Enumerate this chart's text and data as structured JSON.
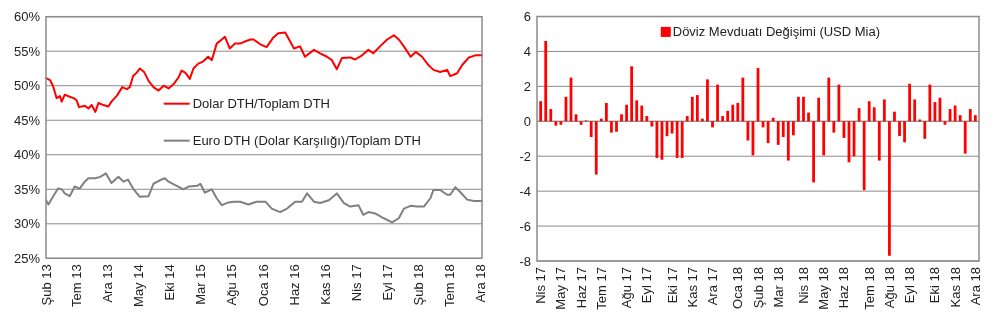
{
  "chart_data": [
    {
      "type": "line",
      "xlim": [
        "2013-02-01",
        "2018-12-10"
      ],
      "xticks": [
        {
          "value": "2013-02-01",
          "label": "Şub 13"
        },
        {
          "value": "2013-07-01",
          "label": "Tem 13"
        },
        {
          "value": "2013-12-01",
          "label": "Ara 13"
        },
        {
          "value": "2014-05-01",
          "label": "May 14"
        },
        {
          "value": "2014-10-01",
          "label": "Eki 14"
        },
        {
          "value": "2015-03-01",
          "label": "Mar 15"
        },
        {
          "value": "2015-08-01",
          "label": "Ağu 15"
        },
        {
          "value": "2016-01-01",
          "label": "Oca 16"
        },
        {
          "value": "2016-06-01",
          "label": "Haz 16"
        },
        {
          "value": "2016-11-01",
          "label": "Kas 16"
        },
        {
          "value": "2017-04-01",
          "label": "Nis 17"
        },
        {
          "value": "2017-09-01",
          "label": "Eyl 17"
        },
        {
          "value": "2018-02-01",
          "label": "Şub 18"
        },
        {
          "value": "2018-07-01",
          "label": "Tem 18"
        },
        {
          "value": "2018-12-01",
          "label": "Ara 18"
        }
      ],
      "ylim": [
        25,
        60
      ],
      "yticks": [
        {
          "value": 25,
          "label": "25%"
        },
        {
          "value": 30,
          "label": "30%"
        },
        {
          "value": 35,
          "label": "35%"
        },
        {
          "value": 40,
          "label": "40%"
        },
        {
          "value": 45,
          "label": "45%"
        },
        {
          "value": 50,
          "label": "50%"
        },
        {
          "value": 55,
          "label": "55%"
        },
        {
          "value": 60,
          "label": "60%"
        }
      ],
      "grid": "y",
      "legend": "center",
      "series": [
        {
          "name": "Dolar DTH/Toplam DTH",
          "color": "#ff0000",
          "x": [
            "2013-02-01",
            "2013-02-21",
            "2013-03-07",
            "2013-03-25",
            "2013-04-10",
            "2013-04-19",
            "2013-05-04",
            "2013-05-28",
            "2013-06-16",
            "2013-07-01",
            "2013-07-13",
            "2013-08-10",
            "2013-08-28",
            "2013-09-13",
            "2013-10-01",
            "2013-10-16",
            "2013-11-10",
            "2013-12-04",
            "2013-12-19",
            "2014-01-16",
            "2014-02-10",
            "2014-03-04",
            "2014-03-19",
            "2014-04-04",
            "2014-04-22",
            "2014-05-07",
            "2014-05-28",
            "2014-06-19",
            "2014-07-13",
            "2014-08-07",
            "2014-09-01",
            "2014-09-25",
            "2014-10-19",
            "2014-11-13",
            "2014-11-28",
            "2014-12-16",
            "2015-01-07",
            "2015-01-25",
            "2015-02-18",
            "2015-03-13",
            "2015-04-07",
            "2015-04-25",
            "2015-05-19",
            "2015-06-13",
            "2015-06-28",
            "2015-07-22",
            "2015-08-16",
            "2015-09-10",
            "2015-10-04",
            "2015-11-01",
            "2015-11-16",
            "2015-12-19",
            "2016-01-19",
            "2016-02-21",
            "2016-03-16",
            "2016-04-19",
            "2016-06-01",
            "2016-07-01",
            "2016-07-25",
            "2016-09-07",
            "2016-10-07",
            "2016-11-10",
            "2016-12-04",
            "2016-12-28",
            "2017-01-22",
            "2017-03-04",
            "2017-03-28",
            "2017-05-01",
            "2017-06-01",
            "2017-06-25",
            "2017-07-28",
            "2017-09-01",
            "2017-10-04",
            "2017-10-28",
            "2017-11-22",
            "2017-12-25",
            "2018-01-19",
            "2018-02-19",
            "2018-03-22",
            "2018-04-16",
            "2018-05-19",
            "2018-06-22",
            "2018-07-07",
            "2018-08-10",
            "2018-09-04",
            "2018-10-07",
            "2018-11-07",
            "2018-12-10"
          ],
          "values": [
            51.1,
            50.8,
            50.0,
            48.2,
            48.5,
            47.7,
            48.7,
            48.4,
            48.2,
            47.9,
            46.9,
            47.1,
            46.7,
            47.2,
            46.2,
            47.5,
            47.2,
            47.0,
            47.7,
            48.6,
            49.8,
            49.5,
            49.8,
            51.4,
            51.9,
            52.5,
            52.0,
            50.7,
            49.8,
            49.3,
            50.0,
            49.6,
            50.2,
            51.2,
            52.2,
            51.9,
            51.0,
            52.5,
            53.2,
            53.5,
            54.2,
            53.7,
            56.1,
            56.7,
            57.1,
            55.4,
            56.1,
            56.1,
            56.4,
            56.7,
            56.7,
            56.0,
            55.6,
            57.0,
            57.6,
            57.7,
            55.4,
            55.7,
            54.2,
            55.2,
            54.7,
            54.2,
            53.7,
            52.4,
            54.0,
            54.1,
            53.8,
            54.4,
            55.2,
            54.7,
            55.7,
            56.7,
            57.3,
            56.7,
            55.7,
            54.2,
            54.9,
            54.2,
            53.0,
            52.3,
            52.0,
            52.3,
            51.4,
            51.8,
            53.0,
            54.1,
            54.4,
            54.4
          ]
        },
        {
          "name": "Euro DTH (Dolar Karşılığı)/Toplam DTH",
          "color": "#808080",
          "x": [
            "2013-02-01",
            "2013-02-13",
            "2013-03-07",
            "2013-04-01",
            "2013-04-19",
            "2013-05-04",
            "2013-05-28",
            "2013-06-22",
            "2013-07-16",
            "2013-08-10",
            "2013-08-28",
            "2013-10-01",
            "2013-10-25",
            "2013-11-22",
            "2013-12-19",
            "2014-01-22",
            "2014-02-16",
            "2014-03-10",
            "2014-04-04",
            "2014-05-07",
            "2014-06-19",
            "2014-07-13",
            "2014-08-13",
            "2014-09-07",
            "2014-09-25",
            "2014-10-28",
            "2014-12-07",
            "2015-01-01",
            "2015-02-13",
            "2015-02-28",
            "2015-03-22",
            "2015-04-25",
            "2015-05-19",
            "2015-06-13",
            "2015-07-16",
            "2015-08-10",
            "2015-09-10",
            "2015-10-22",
            "2015-12-01",
            "2016-01-13",
            "2016-02-13",
            "2016-03-25",
            "2016-04-28",
            "2016-06-07",
            "2016-07-10",
            "2016-08-04",
            "2016-09-07",
            "2016-10-07",
            "2016-11-19",
            "2016-12-28",
            "2017-02-01",
            "2017-03-04",
            "2017-04-13",
            "2017-05-07",
            "2017-06-01",
            "2017-07-04",
            "2017-08-16",
            "2017-09-25",
            "2017-10-28",
            "2017-11-22",
            "2017-12-25",
            "2018-01-25",
            "2018-02-28",
            "2018-04-01",
            "2018-04-16",
            "2018-05-19",
            "2018-06-22",
            "2018-07-07",
            "2018-08-01",
            "2018-08-25",
            "2018-09-28",
            "2018-11-01",
            "2018-12-10"
          ],
          "values": [
            33.4,
            32.8,
            33.9,
            35.1,
            35.0,
            34.4,
            34.0,
            35.4,
            35.1,
            36.1,
            36.6,
            36.6,
            36.8,
            37.3,
            35.9,
            36.8,
            36.1,
            36.4,
            35.1,
            33.9,
            34.0,
            35.8,
            36.3,
            36.6,
            36.1,
            35.6,
            35.0,
            35.4,
            35.5,
            35.8,
            34.5,
            35.0,
            33.7,
            32.7,
            33.1,
            33.2,
            33.2,
            32.8,
            33.2,
            33.2,
            32.2,
            31.7,
            32.2,
            33.2,
            33.2,
            34.4,
            33.2,
            33.0,
            33.4,
            34.4,
            33.0,
            32.5,
            32.7,
            31.3,
            31.7,
            31.5,
            30.8,
            30.2,
            30.8,
            32.2,
            32.6,
            32.5,
            32.5,
            33.7,
            34.9,
            34.9,
            34.2,
            34.2,
            35.3,
            34.6,
            33.5,
            33.3,
            33.3
          ]
        }
      ]
    },
    {
      "type": "bar",
      "ylim": [
        -8,
        6
      ],
      "yticks": [
        -8,
        -6,
        -4,
        -2,
        0,
        2,
        4,
        6
      ],
      "grid": "y",
      "legend": "top",
      "categories": [
        "Nis 17",
        null,
        null,
        null,
        "May 17",
        null,
        null,
        null,
        "Haz 17",
        null,
        null,
        null,
        "Tem 17",
        null,
        null,
        null,
        null,
        "Ağu 17",
        null,
        null,
        null,
        "Eyl 17",
        null,
        null,
        null,
        null,
        "Eki 17",
        null,
        null,
        null,
        "Kas 17",
        null,
        null,
        null,
        "Ara 17",
        null,
        null,
        null,
        null,
        "Oca 18",
        null,
        null,
        null,
        "Şub 18",
        null,
        null,
        null,
        "Mar 18",
        null,
        null,
        null,
        null,
        "Nis 18",
        null,
        null,
        null,
        "May 18",
        null,
        null,
        null,
        "Haz 18",
        null,
        null,
        null,
        null,
        "Tem 18",
        null,
        null,
        null,
        "Ağu 18",
        null,
        null,
        null,
        "Eyl 18",
        null,
        null,
        null,
        null,
        "Eki 18",
        null,
        null,
        null,
        "Kas 18",
        null,
        null,
        null,
        "Ara 18"
      ],
      "series": [
        {
          "name": "Döviz Mevduatı Değişimi (USD Mia)",
          "color": "#ff0000",
          "values": [
            1.15,
            4.6,
            0.7,
            -0.25,
            -0.2,
            1.4,
            2.5,
            0.4,
            -0.2,
            0.05,
            -0.9,
            -3.05,
            0.15,
            1.05,
            -0.65,
            -0.6,
            0.4,
            0.95,
            3.15,
            1.2,
            0.9,
            0.3,
            -0.3,
            -2.1,
            -2.2,
            -0.85,
            -0.7,
            -2.1,
            -2.1,
            0.3,
            1.4,
            1.5,
            0.15,
            2.4,
            -0.35,
            2.1,
            0.3,
            0.6,
            0.95,
            1.05,
            2.5,
            -1.1,
            -1.95,
            3.05,
            -0.35,
            -1.25,
            0.2,
            -1.35,
            -0.9,
            -2.25,
            -0.8,
            1.4,
            1.4,
            0.5,
            -3.5,
            1.35,
            -1.95,
            2.5,
            -0.65,
            2.1,
            -0.95,
            -2.35,
            -2.0,
            0.75,
            -3.95,
            1.15,
            0.8,
            -2.25,
            1.25,
            -7.7,
            0.55,
            -0.85,
            -1.2,
            2.15,
            1.25,
            0.1,
            -1.0,
            2.1,
            1.1,
            1.35,
            -0.2,
            0.7,
            0.9,
            0.35,
            -1.85,
            0.7,
            0.35
          ]
        }
      ]
    }
  ]
}
